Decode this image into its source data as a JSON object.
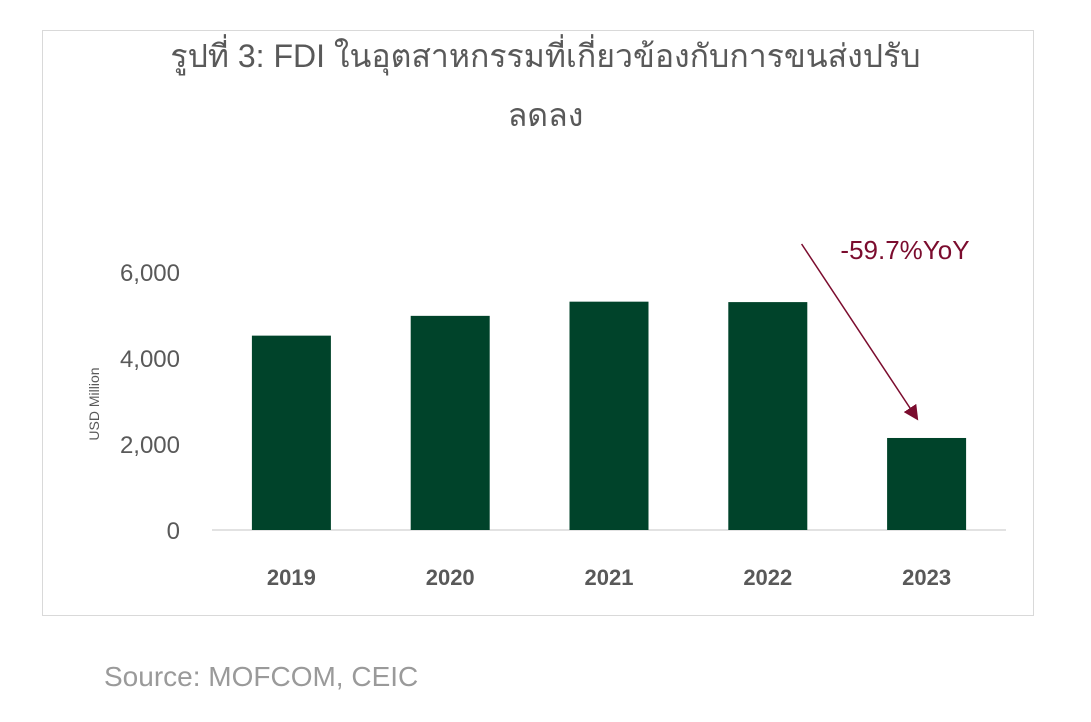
{
  "chart_data": {
    "type": "bar",
    "title_line1": "รูปที่ 3: FDI ในอุตสาหกรรมที่เกี่ยวข้องกับการขนส่งปรับ",
    "title_line2": "ลดลง",
    "ylabel": "USD Million",
    "categories": [
      "2019",
      "2020",
      "2021",
      "2022",
      "2023"
    ],
    "values": [
      4520,
      4980,
      5310,
      5300,
      2140
    ],
    "ylim": [
      0,
      6000
    ],
    "yticks": [
      0,
      2000,
      4000,
      6000
    ],
    "ytick_labels": [
      "0",
      "2,000",
      "4,000",
      "6,000"
    ],
    "bar_color": "#00432a",
    "annotation": {
      "text": "-59.7%YoY",
      "color": "#7b0c2e",
      "target_category": "2023"
    },
    "grid": false
  },
  "source": "Source: MOFCOM, CEIC"
}
